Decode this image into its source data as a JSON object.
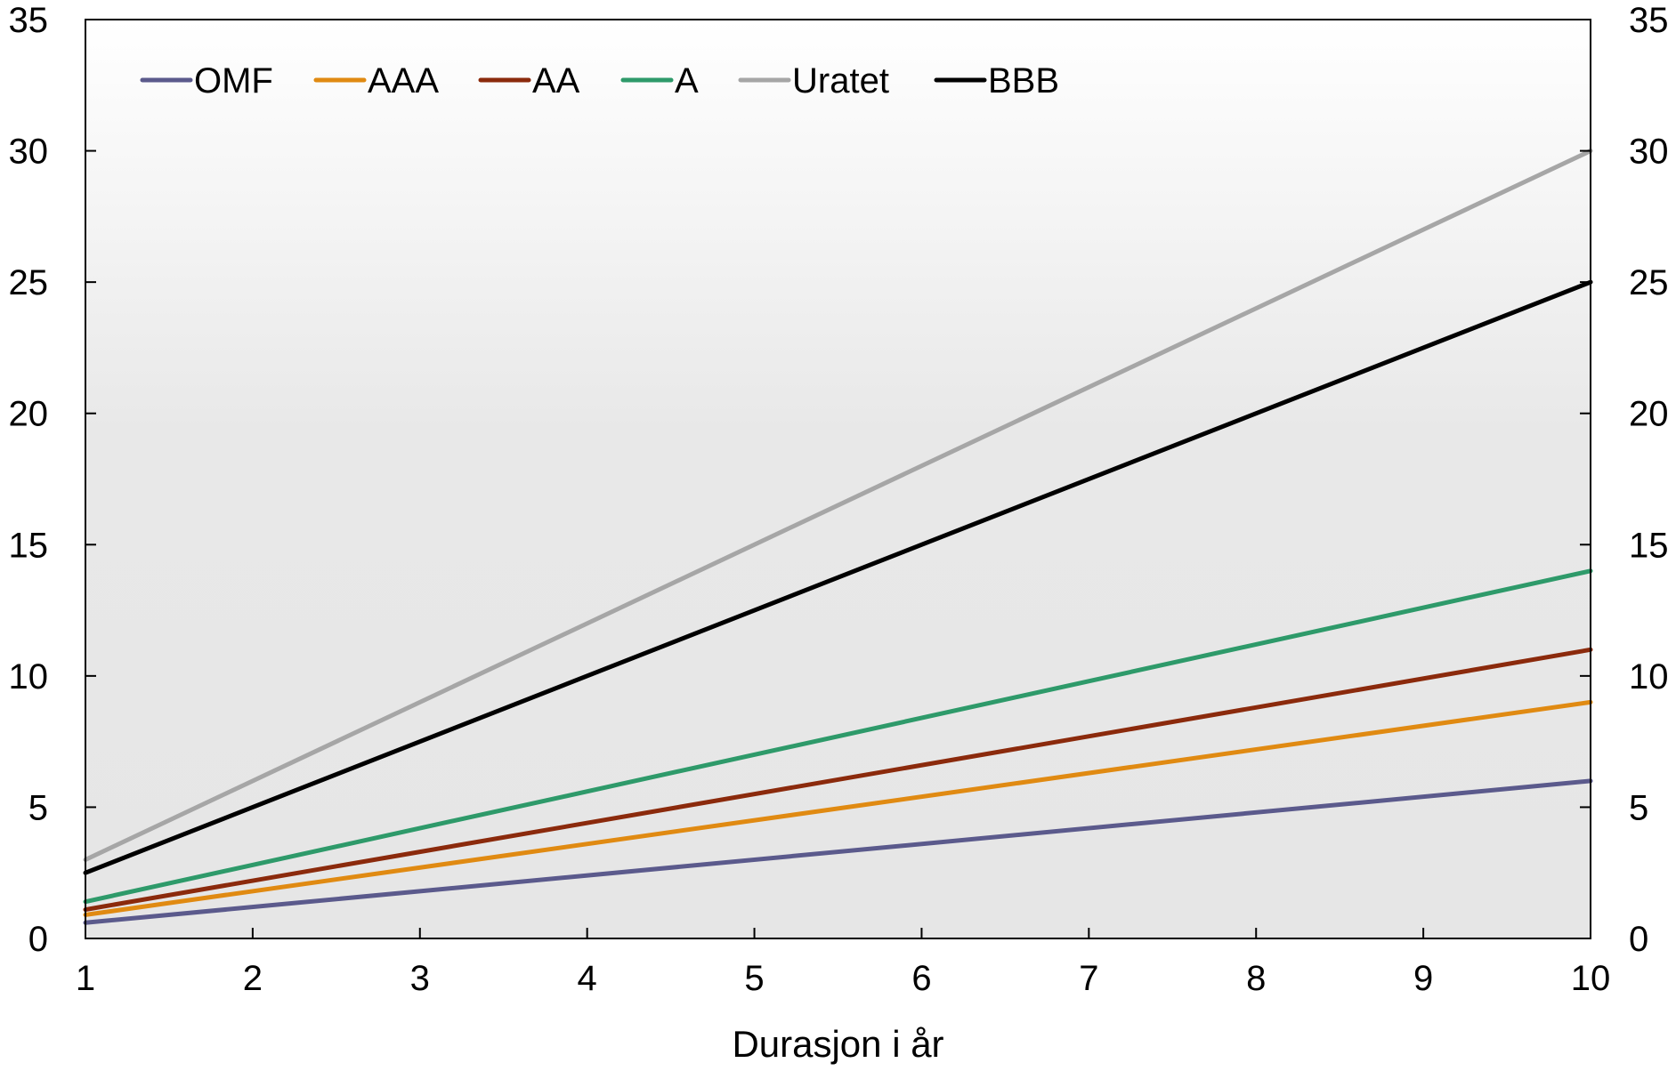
{
  "chart_data": {
    "type": "line",
    "title": "",
    "xlabel": "Durasjon i år",
    "ylabel": "",
    "xlim": [
      1,
      10
    ],
    "ylim": [
      0,
      35
    ],
    "x_ticks": [
      "1",
      "2",
      "3",
      "4",
      "5",
      "6",
      "7",
      "8",
      "9",
      "10"
    ],
    "y_ticks": [
      "0",
      "5",
      "10",
      "15",
      "20",
      "25",
      "30",
      "35"
    ],
    "y_tick_values": [
      0,
      5,
      10,
      15,
      20,
      25,
      30,
      35
    ],
    "secondary_y_axis": true,
    "grid": false,
    "background": "gradient white to light gray",
    "legend_position": "top-left",
    "x": [
      1,
      10
    ],
    "series": [
      {
        "name": "OMF",
        "color": "#5b5a8c",
        "values": [
          0.6,
          6
        ]
      },
      {
        "name": "AAA",
        "color": "#e08a12",
        "values": [
          0.9,
          9
        ]
      },
      {
        "name": "AA",
        "color": "#8b2a0c",
        "values": [
          1.1,
          11
        ]
      },
      {
        "name": "A",
        "color": "#2e9a6a",
        "values": [
          1.4,
          14
        ]
      },
      {
        "name": "Uratet",
        "color": "#a6a6a6",
        "values": [
          3,
          30
        ]
      },
      {
        "name": "BBB",
        "color": "#000000",
        "values": [
          2.5,
          25
        ]
      }
    ]
  }
}
